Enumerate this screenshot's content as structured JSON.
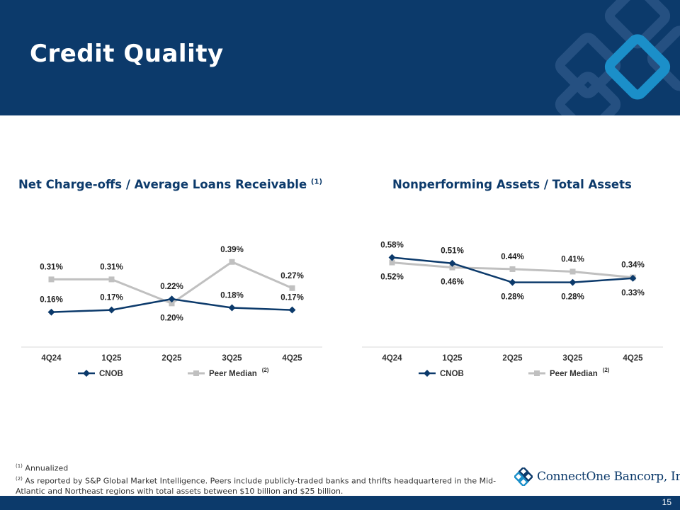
{
  "header": {
    "title": "Credit Quality"
  },
  "chart_data": [
    {
      "type": "line",
      "title": "Net Charge-offs / Average Loans Receivable",
      "title_note": "(1)",
      "categories": [
        "4Q24",
        "1Q25",
        "2Q25",
        "3Q25",
        "4Q25"
      ],
      "series": [
        {
          "name": "CNOB",
          "values": [
            0.16,
            0.17,
            0.22,
            0.18,
            0.17
          ],
          "labels": [
            "0.16%",
            "0.17%",
            "0.22%",
            "0.18%",
            "0.17%"
          ],
          "color": "#0c3a6b",
          "marker": "diamond"
        },
        {
          "name": "Peer Median",
          "note": "(2)",
          "values": [
            0.31,
            0.31,
            0.2,
            0.39,
            0.27
          ],
          "labels": [
            "0.31%",
            "0.31%",
            "0.20%",
            "0.39%",
            "0.27%"
          ],
          "color": "#c0c0c0",
          "marker": "square"
        }
      ],
      "ylim": [
        0.0,
        0.6
      ],
      "xlabel": "",
      "ylabel": "",
      "legend": "bottom"
    },
    {
      "type": "line",
      "title": "Nonperforming Assets / Total Assets",
      "title_note": "",
      "categories": [
        "4Q24",
        "1Q25",
        "2Q25",
        "3Q25",
        "4Q25"
      ],
      "series": [
        {
          "name": "CNOB",
          "values": [
            0.58,
            0.51,
            0.28,
            0.28,
            0.33
          ],
          "labels": [
            "0.58%",
            "0.51%",
            "0.28%",
            "0.28%",
            "0.33%"
          ],
          "color": "#0c3a6b",
          "marker": "diamond"
        },
        {
          "name": "Peer Median",
          "note": "(2)",
          "values": [
            0.52,
            0.46,
            0.44,
            0.41,
            0.34
          ],
          "labels": [
            "0.52%",
            "0.46%",
            "0.44%",
            "0.41%",
            "0.34%"
          ],
          "color": "#c0c0c0",
          "marker": "square"
        }
      ],
      "ylim": [
        -0.5,
        1.08
      ],
      "xlabel": "",
      "ylabel": "",
      "legend": "bottom"
    }
  ],
  "footnotes": {
    "note1_mark": "(1)",
    "note1_text": " Annualized",
    "note2_mark": "(2)",
    "note2_text": " As reported by S&P Global Market Intelligence. Peers include publicly-traded banks and thrifts headquartered in the Mid-Atlantic and Northeast regions with total assets between $10 billion and $25 billion."
  },
  "logo": {
    "text": "ConnectOne Bancorp, Inc."
  },
  "page_number": "15",
  "colors": {
    "brand_navy": "#0c3a6b",
    "peer_gray": "#c0c0c0",
    "logo_blue": "#1b8fc9"
  }
}
